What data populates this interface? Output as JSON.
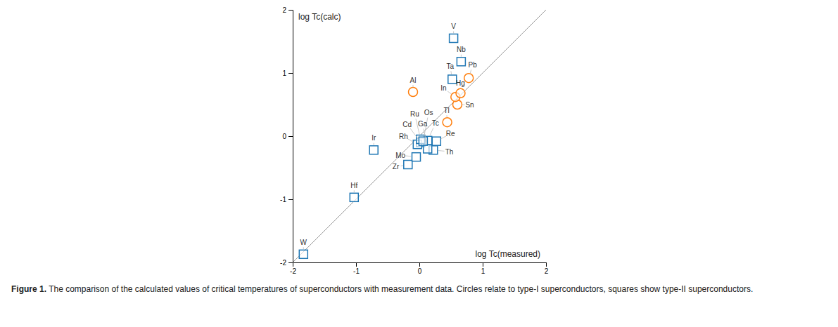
{
  "chart_data": {
    "type": "scatter",
    "xlabel": "log Tc(measured)",
    "ylabel": "log Tc(calc)",
    "xlim": [
      -2,
      2
    ],
    "ylim": [
      -2,
      2
    ],
    "xticks": [
      -2,
      -1,
      0,
      1,
      2
    ],
    "yticks": [
      -2,
      -1,
      0,
      1,
      2
    ],
    "caption_label": "Figure 1.",
    "caption": "The comparison of the calculated values of critical temperatures of superconductors with measurement data. Circles relate to type-I superconductors, squares show type-II superconductors.",
    "series": [
      {
        "type": "line",
        "x": [
          -2,
          2
        ],
        "values": [
          -2,
          2
        ]
      },
      {
        "type": "scatter",
        "marker": "square",
        "labels": [
          "W",
          "Hf",
          "Ir",
          "Zr",
          "Mo",
          "Tc",
          "Nb",
          "V",
          "Ta",
          "Re",
          "Cd",
          "Rh",
          "Th",
          "Ga",
          "Ru",
          "Os"
        ],
        "x": [
          -1.83,
          -1.03,
          -0.72,
          -0.18,
          -0.05,
          0.13,
          0.66,
          0.54,
          0.52,
          0.27,
          0.02,
          -0.03,
          0.22,
          0.13,
          0.02,
          0.06
        ],
        "values": [
          -1.87,
          -0.97,
          -0.22,
          -0.45,
          -0.33,
          -0.07,
          1.18,
          1.55,
          0.9,
          -0.08,
          -0.1,
          -0.13,
          -0.22,
          -0.2,
          -0.05,
          -0.08
        ]
      },
      {
        "type": "scatter",
        "marker": "circle",
        "labels": [
          "Al",
          "Tl",
          "Sn",
          "In",
          "Pb",
          "Hg"
        ],
        "x": [
          -0.1,
          0.44,
          0.6,
          0.57,
          0.78,
          0.65
        ],
        "values": [
          0.7,
          0.22,
          0.5,
          0.62,
          0.92,
          0.68
        ]
      }
    ]
  }
}
